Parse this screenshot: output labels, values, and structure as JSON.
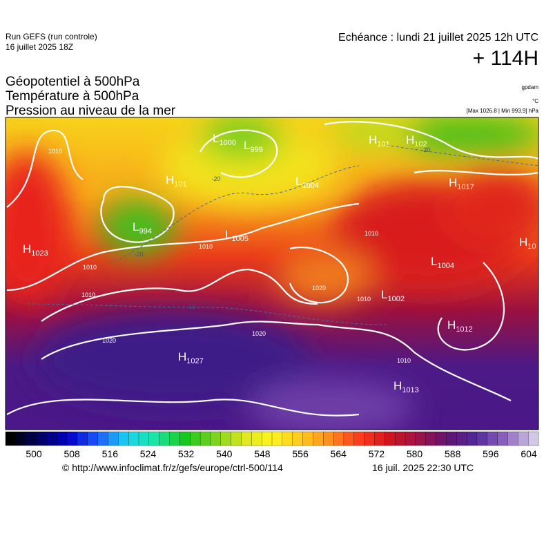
{
  "header": {
    "run": "Run GEFS (run controle)",
    "run_date": "16 juillet 2025 18Z",
    "valid": "Echéance : lundi 21 juillet 2025 12h UTC",
    "lead": "+ 114H"
  },
  "titles": [
    "Géopotentiel à 500hPa",
    "Température à 500hPa",
    "Pression au niveau de la mer"
  ],
  "units": {
    "geopotential": "gpdam",
    "temperature": "°C",
    "pressure": "[Max 1026.8 | Min 993.9] hPa"
  },
  "pressure_centers": [
    {
      "letter": "H",
      "value": "1023"
    },
    {
      "letter": "L",
      "value": "994"
    },
    {
      "letter": "H",
      "value": "101"
    },
    {
      "letter": "L",
      "value": "1000"
    },
    {
      "letter": "L",
      "value": "999"
    },
    {
      "letter": "H",
      "value": "101"
    },
    {
      "letter": "H",
      "value": "102"
    },
    {
      "letter": "L",
      "value": "1004"
    },
    {
      "letter": "H",
      "value": "1017"
    },
    {
      "letter": "L",
      "value": "1005"
    },
    {
      "letter": "L",
      "value": "1004"
    },
    {
      "letter": "L",
      "value": "1002"
    },
    {
      "letter": "H",
      "value": "1012"
    },
    {
      "letter": "H",
      "value": "1027"
    },
    {
      "letter": "H",
      "value": "1013"
    },
    {
      "letter": "H",
      "value": "10"
    }
  ],
  "isobar_labels": [
    "1010",
    "1010",
    "1010",
    "1020",
    "1020",
    "1010",
    "1010",
    "1010",
    "1010",
    "1020"
  ],
  "temperature_labels": [
    "-20",
    "-20",
    "-20",
    "-10"
  ],
  "colorbar_ticks": [
    500,
    508,
    516,
    524,
    532,
    540,
    548,
    556,
    564,
    572,
    580,
    588,
    596,
    604
  ],
  "footer": {
    "source": "© http://www.infoclimat.fr/z/gefs/europe/ctrl-500/114",
    "generated": "16 juil. 2025 22:30 UTC"
  }
}
